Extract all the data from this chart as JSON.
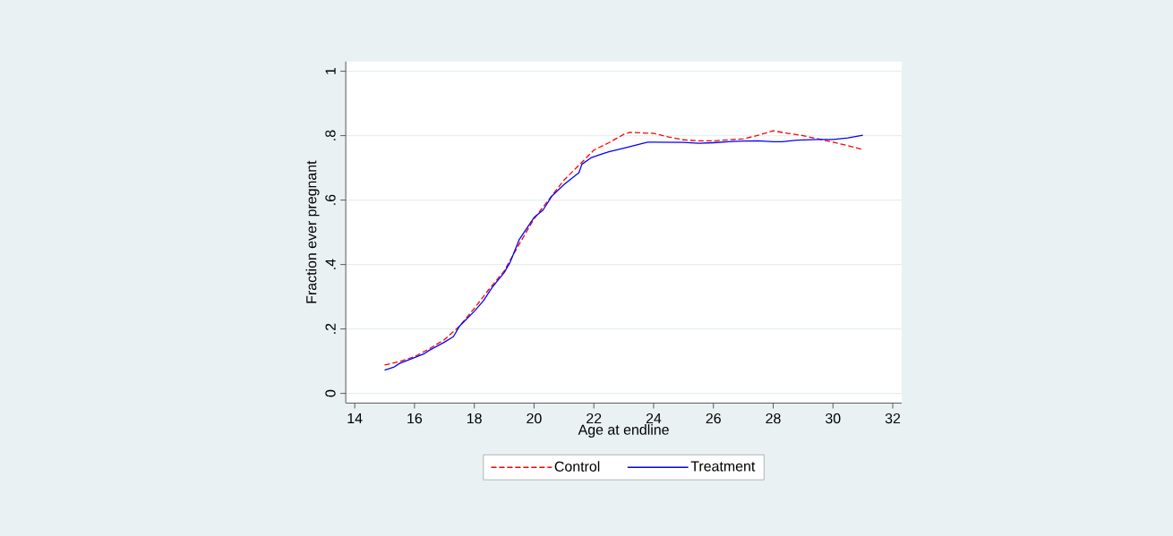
{
  "chart_data": {
    "type": "line",
    "xlabel": "Age at endline",
    "ylabel": "Fraction ever pregnant",
    "xlim": [
      13.7,
      32.3
    ],
    "xticks": [
      14,
      16,
      18,
      20,
      22,
      24,
      26,
      28,
      30,
      32
    ],
    "ylim": [
      -0.03,
      1.03
    ],
    "yticks": [
      {
        "value": 0,
        "label": "0"
      },
      {
        "value": 0.2,
        "label": ".2"
      },
      {
        "value": 0.4,
        "label": ".4"
      },
      {
        "value": 0.6,
        "label": ".6"
      },
      {
        "value": 0.8,
        "label": ".8"
      },
      {
        "value": 1,
        "label": "1"
      }
    ],
    "grid": "y",
    "legend": "bottom",
    "marker": "none",
    "series": [
      {
        "name": "Control",
        "color": "#ff0000",
        "line_style": "dashed",
        "x": [
          15,
          15.5,
          16,
          16.5,
          17,
          17.5,
          18,
          18.5,
          19,
          19.5,
          20,
          20.5,
          21,
          21.5,
          22,
          22.5,
          23,
          23.2,
          24,
          24.5,
          25,
          25.5,
          26,
          26.5,
          27,
          27.5,
          28,
          28.5,
          29,
          29.5,
          30,
          30.5,
          31
        ],
        "values": [
          0.088,
          0.099,
          0.114,
          0.139,
          0.167,
          0.208,
          0.264,
          0.324,
          0.38,
          0.463,
          0.542,
          0.602,
          0.662,
          0.708,
          0.755,
          0.778,
          0.804,
          0.81,
          0.807,
          0.796,
          0.787,
          0.784,
          0.784,
          0.787,
          0.79,
          0.801,
          0.815,
          0.807,
          0.8,
          0.79,
          0.78,
          0.769,
          0.757
        ]
      },
      {
        "name": "Treatment",
        "color": "#0000ff",
        "line_style": "solid",
        "x": [
          15,
          15.3,
          15.5,
          16,
          16.3,
          16.5,
          17,
          17.3,
          17.5,
          18,
          18.3,
          18.6,
          19,
          19.2,
          19.5,
          20,
          20.3,
          20.6,
          21,
          21.5,
          21.6,
          21.9,
          22.2,
          22.5,
          23,
          23.5,
          23.8,
          24,
          25,
          25.5,
          26,
          26.5,
          27,
          27.5,
          28,
          28.3,
          28.8,
          29.5,
          30,
          30.5,
          31
        ],
        "values": [
          0.072,
          0.081,
          0.093,
          0.111,
          0.122,
          0.134,
          0.159,
          0.176,
          0.208,
          0.255,
          0.287,
          0.329,
          0.375,
          0.407,
          0.477,
          0.546,
          0.569,
          0.613,
          0.648,
          0.685,
          0.711,
          0.731,
          0.741,
          0.75,
          0.761,
          0.773,
          0.78,
          0.78,
          0.779,
          0.776,
          0.778,
          0.781,
          0.783,
          0.784,
          0.781,
          0.781,
          0.786,
          0.788,
          0.788,
          0.793,
          0.801
        ]
      }
    ]
  }
}
